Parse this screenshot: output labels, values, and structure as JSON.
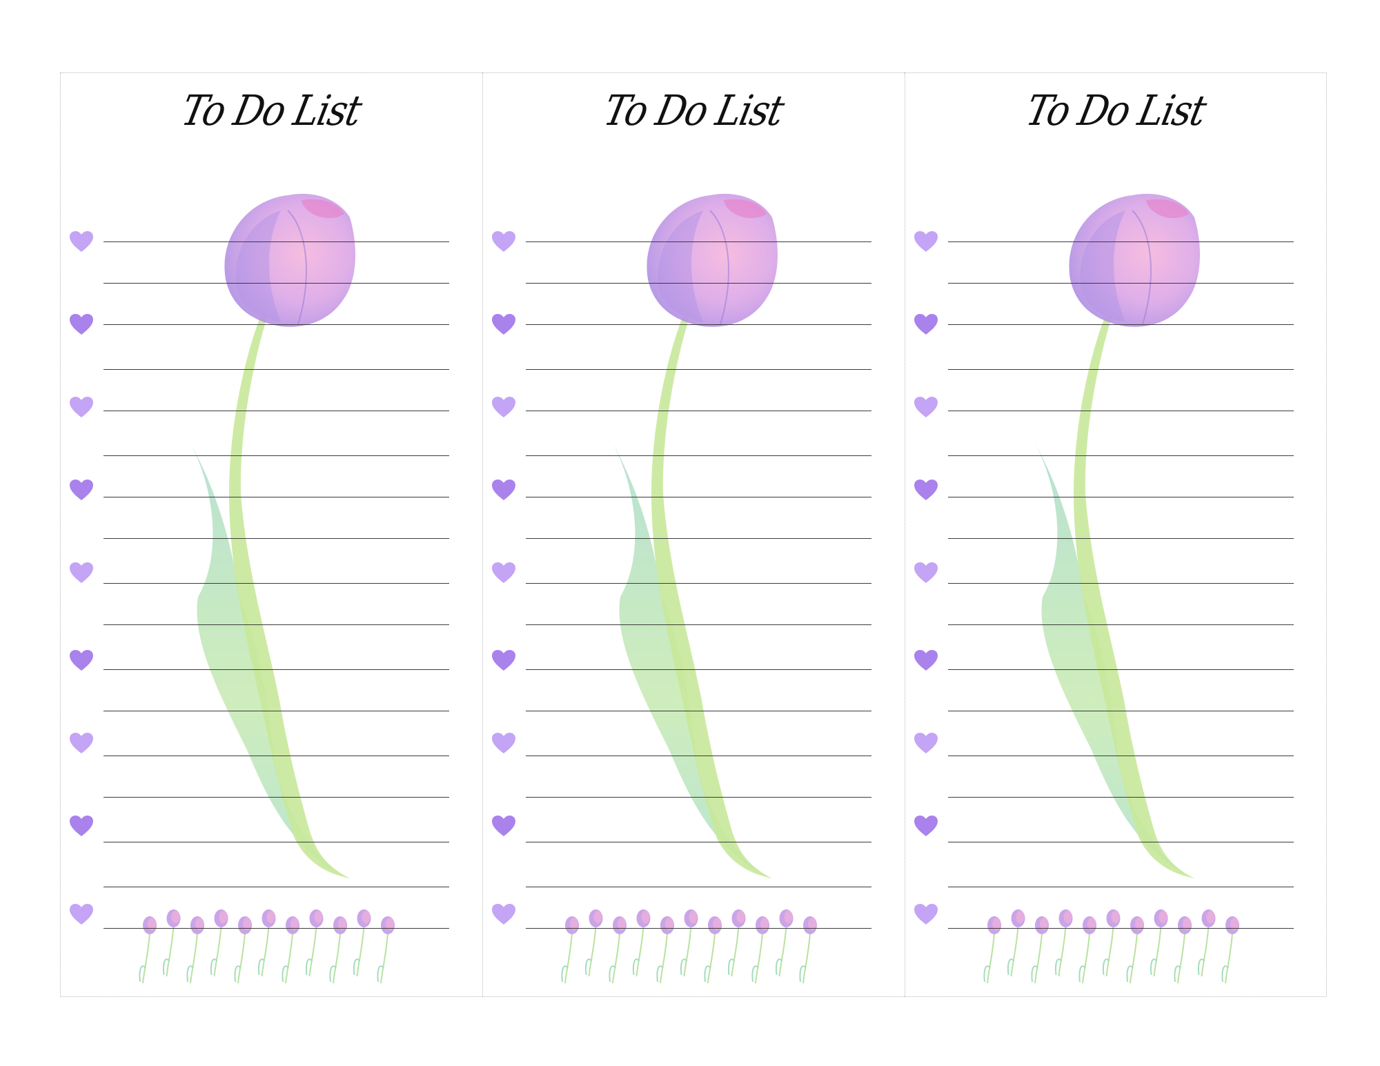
{
  "page": {
    "cards": [
      {
        "title": "To Do List"
      },
      {
        "title": "To Do List"
      },
      {
        "title": "To Do List"
      }
    ]
  },
  "list": {
    "bullet_icon": "heart-icon",
    "bullet_count": 9,
    "ruled_line_count": 17
  },
  "colors": {
    "heart_light": "#c4a4f4",
    "heart_dark": "#a982ec",
    "line": "#3a3a3a",
    "tulip_petal": "#cf9be3",
    "tulip_pink": "#f1a8d6",
    "stem": "#b8e28a",
    "leaf": "#a8dcb0"
  },
  "decorations": {
    "main_illustration": "tulip-illustration",
    "footer_illustration": "small-tulips-row"
  }
}
